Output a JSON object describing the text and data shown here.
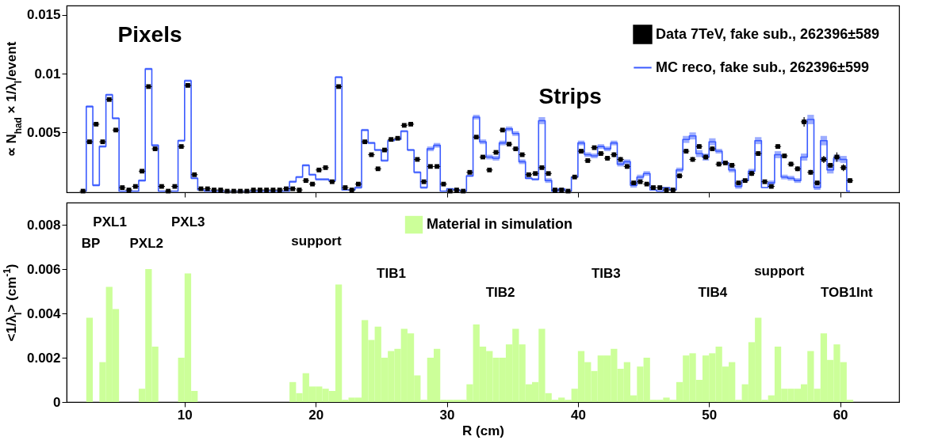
{
  "chart_data": [
    {
      "type": "step",
      "ylabel": "∝ N$_{had}$ × 1/λ$_{I}$/event",
      "xlim": [
        1,
        64.5
      ],
      "ylim": [
        -0.0001,
        0.0158
      ],
      "xticks": [
        10,
        20,
        30,
        40,
        50,
        60
      ],
      "yticks": [
        0.005,
        0.01,
        0.015
      ],
      "tick_labels": "y",
      "legend": "top right",
      "x": [
        2.25,
        2.75,
        3.25,
        3.75,
        4.25,
        4.75,
        5.25,
        5.75,
        6.25,
        6.75,
        7.25,
        7.75,
        8.25,
        8.75,
        9.25,
        9.75,
        10.25,
        10.75,
        11.25,
        11.75,
        12.25,
        12.75,
        13.25,
        13.75,
        14.25,
        14.75,
        15.25,
        15.75,
        16.25,
        16.75,
        17.25,
        17.75,
        18.25,
        18.75,
        19.25,
        19.75,
        20.25,
        20.75,
        21.25,
        21.75,
        22.25,
        22.75,
        23.25,
        23.75,
        24.25,
        24.75,
        25.25,
        25.75,
        26.25,
        26.75,
        27.25,
        27.75,
        28.25,
        28.75,
        29.25,
        29.75,
        30.25,
        30.75,
        31.25,
        31.75,
        32.25,
        32.75,
        33.25,
        33.75,
        34.25,
        34.75,
        35.25,
        35.75,
        36.25,
        36.75,
        37.25,
        37.75,
        38.25,
        38.75,
        39.25,
        39.75,
        40.25,
        40.75,
        41.25,
        41.75,
        42.25,
        42.75,
        43.25,
        43.75,
        44.25,
        44.75,
        45.25,
        45.75,
        46.25,
        46.75,
        47.25,
        47.75,
        48.25,
        48.75,
        49.25,
        49.75,
        50.25,
        50.75,
        51.25,
        51.75,
        52.25,
        52.75,
        53.25,
        53.75,
        54.25,
        54.75,
        55.25,
        55.75,
        56.25,
        56.75,
        57.25,
        57.75,
        58.25,
        58.75,
        59.25,
        59.75,
        60.25,
        60.75
      ],
      "series": [
        {
          "name": "Data 7TeV, fake sub., 262396±589",
          "type": "scatter",
          "marker": "square",
          "color": "#000000",
          "x": [
            2.25,
            2.75,
            3.25,
            3.75,
            4.25,
            4.75,
            5.25,
            5.75,
            6.25,
            6.75,
            7.25,
            7.75,
            8.25,
            8.75,
            9.25,
            9.75,
            10.25,
            10.75,
            11.25,
            11.75,
            12.25,
            12.75,
            13.25,
            13.75,
            14.25,
            14.75,
            15.25,
            15.75,
            16.25,
            16.75,
            17.25,
            17.75,
            18.25,
            18.75,
            19.25,
            19.75,
            20.25,
            20.75,
            21.25,
            21.75,
            22.25,
            22.75,
            23.25,
            23.75,
            24.25,
            24.75,
            25.25,
            25.75,
            26.25,
            26.75,
            27.25,
            27.75,
            28.25,
            28.75,
            29.25,
            29.75,
            30.25,
            30.75,
            31.25,
            31.75,
            32.25,
            32.75,
            33.25,
            33.75,
            34.25,
            34.75,
            35.25,
            35.75,
            36.25,
            36.75,
            37.25,
            37.75,
            38.25,
            38.75,
            39.25,
            39.75,
            40.25,
            40.75,
            41.25,
            41.75,
            42.25,
            42.75,
            43.25,
            43.75,
            44.25,
            44.75,
            45.25,
            45.75,
            46.25,
            46.75,
            47.25,
            47.75,
            48.25,
            48.75,
            49.25,
            49.75,
            50.25,
            50.75,
            51.25,
            51.75,
            52.25,
            52.75,
            53.25,
            53.75,
            54.25,
            54.75,
            55.25,
            55.75,
            56.25,
            56.75,
            57.25,
            57.75,
            58.25,
            58.75,
            59.25,
            59.75,
            60.25,
            60.75
          ],
          "values": [
            0,
            0.0042,
            0.0057,
            0.0042,
            0.0078,
            0.0052,
            0.0003,
            0.0001,
            0.0004,
            0.0017,
            0.0089,
            0.0036,
            0.0004,
            0,
            0.0004,
            0.0038,
            0.009,
            0.0014,
            0.0002,
            0.0002,
            0.0001,
            0.0001,
            0,
            0,
            0,
            0,
            0.0001,
            0.0001,
            0.0001,
            0.0001,
            0.0001,
            0.0002,
            0.0002,
            0.0001,
            0.0009,
            0.0006,
            0.0018,
            0.002,
            0.0008,
            0.0089,
            0.0003,
            0.0001,
            0.0006,
            0.0042,
            0.0031,
            0.0019,
            0.0035,
            0.0044,
            0.0045,
            0.0056,
            0.0057,
            0.0027,
            0.0008,
            0.0021,
            0.0021,
            0.0006,
            0,
            0.0001,
            0,
            0.0016,
            0.0046,
            0.0029,
            0.0018,
            0.0033,
            0.0052,
            0.004,
            0.0036,
            0.0031,
            0.0014,
            0.0015,
            0.002,
            0.0015,
            0.0001,
            0.0001,
            0,
            0.0012,
            0.0034,
            0.0026,
            0.0037,
            0.0032,
            0.0028,
            0.0031,
            0.0027,
            0.0021,
            0.0007,
            0.0008,
            0.0006,
            0.0003,
            0.0003,
            0.0001,
            0.0001,
            0.0013,
            0.0034,
            0.0027,
            0.0038,
            0.0029,
            0.0036,
            0.0023,
            0.0024,
            0.0022,
            0.0007,
            0.0009,
            0.0015,
            0.0032,
            0.0008,
            0.0004,
            0.0038,
            0.003,
            0.0023,
            0.0019,
            0.0059,
            0.0016,
            0.0007,
            0.0027,
            0.0022,
            0.0029,
            0.002,
            0.0009
          ],
          "errors": [
            null,
            null,
            null,
            null,
            null,
            null,
            null,
            null,
            null,
            null,
            null,
            null,
            null,
            null,
            null,
            null,
            null,
            null,
            null,
            null,
            null,
            null,
            null,
            null,
            null,
            null,
            null,
            null,
            null,
            null,
            null,
            null,
            null,
            null,
            null,
            null,
            null,
            null,
            null,
            null,
            null,
            null,
            null,
            null,
            null,
            null,
            null,
            null,
            null,
            null,
            null,
            null,
            null,
            null,
            null,
            null,
            null,
            null,
            null,
            null,
            null,
            null,
            null,
            null,
            null,
            null,
            null,
            null,
            null,
            null,
            null,
            null,
            null,
            null,
            null,
            null,
            null,
            null,
            null,
            null,
            0.0002,
            0.0002,
            0.0002,
            0.0002,
            null,
            null,
            null,
            null,
            null,
            null,
            null,
            0.0002,
            0.0002,
            0.0002,
            0.0002,
            0.0002,
            0.0002,
            0.0002,
            null,
            0.0002,
            null,
            null,
            0.0002,
            0.0002,
            null,
            null,
            0.0002,
            0.0002,
            0.0002,
            0.0002,
            0.0004,
            0.0002,
            null,
            0.0003,
            0.0002,
            0.0004,
            0.0003,
            0.0002
          ],
          "xerrors": [
            0.25,
            0.25,
            0.25,
            0.25,
            0.25,
            0.25,
            0.25,
            0.25,
            0.25,
            0.25,
            0.25,
            0.25,
            0.25,
            0.25,
            0.25,
            0.25,
            0.25,
            0.25,
            0.25,
            0.25,
            0.25,
            0.25,
            0.25,
            0.25,
            0.25,
            0.25,
            0.25,
            0.25,
            0.25,
            0.25,
            0.25,
            0.25,
            0.25,
            0.25,
            0.25,
            0.25,
            0.25,
            0.25,
            0.25,
            0.25,
            0.25,
            0.25,
            0.25,
            0.25,
            0.25,
            0.25,
            0.25,
            0.25,
            0.25,
            0.25,
            0.25,
            0.25,
            0.25,
            0.25,
            0.25,
            0.25,
            0.25,
            0.25,
            0.25,
            0.25,
            0.25,
            0.25,
            0.25,
            0.25,
            0.25,
            0.25,
            0.25,
            0.25,
            0.25,
            0.25,
            0.25,
            0.25,
            0.25,
            0.25,
            0.25,
            0.25,
            0.25,
            0.25,
            0.25,
            0.25,
            0.25,
            0.25,
            0.25,
            0.25,
            0.25,
            0.25,
            0.25,
            0.25,
            0.25,
            0.25,
            0.25,
            0.25,
            0.25,
            0.25,
            0.25,
            0.25,
            0.25,
            0.25,
            0.25,
            0.25,
            0.25,
            0.25,
            0.25,
            0.25,
            0.25,
            0.25,
            0.25,
            0.25,
            0.25,
            0.25,
            0.25,
            0.25,
            0.25,
            0.25,
            0.25,
            0.25,
            0.25,
            0.25
          ]
        },
        {
          "name": "MC reco, fake sub., 262396±599",
          "color": "#3b5bff",
          "values": [
            0,
            0.0072,
            0.0005,
            0.0038,
            0.0082,
            0.0062,
            0,
            0,
            0,
            0.0009,
            0.0104,
            0.0039,
            0,
            0,
            0,
            0.0043,
            0.0094,
            0.0011,
            0.0001,
            0,
            0,
            0,
            0,
            0,
            0,
            0,
            0,
            0,
            0,
            0,
            0,
            0,
            0.0008,
            0.0012,
            0.0022,
            0.0014,
            0.001,
            0.001,
            0.0009,
            0.0097,
            0.0001,
            0.0001,
            0.0003,
            0.0052,
            0.0041,
            0.0035,
            0.0026,
            0.0043,
            0.0044,
            0.0051,
            0.0035,
            0.0016,
            0.0003,
            0.0036,
            0.0039,
            0,
            0.0002,
            0.0001,
            0,
            0.0013,
            0.0063,
            0.0042,
            0.0029,
            0.0028,
            0.0041,
            0.0053,
            0.0049,
            0.0025,
            0.0011,
            0.001,
            0.006,
            0.0009,
            0,
            0.0002,
            0,
            0.0012,
            0.0041,
            0.0031,
            0.003,
            0.0038,
            0.0036,
            0.0041,
            0.0023,
            0.0025,
            0.0005,
            0.0012,
            0.0015,
            0.0001,
            0,
            0.0003,
            0.0001,
            0.0018,
            0.0044,
            0.0047,
            0.0032,
            0.0029,
            0.0042,
            0.0034,
            0.0024,
            0.0018,
            0.0004,
            0.0009,
            0.0017,
            0.0043,
            0.0003,
            0.0007,
            0.0031,
            0.0012,
            0.0011,
            0.0009,
            0.0029,
            0.0061,
            0.0003,
            0.0043,
            0.0018,
            0.0028,
            0.0027,
            0
          ],
          "errors": [
            null,
            0.0001,
            0.0001,
            0.0001,
            0.0001,
            0.0001,
            null,
            null,
            null,
            0.0001,
            0.0001,
            0.0001,
            null,
            null,
            null,
            0.0001,
            0.0001,
            0.0001,
            null,
            null,
            null,
            null,
            null,
            null,
            null,
            null,
            null,
            null,
            null,
            null,
            null,
            null,
            0.0001,
            0.0001,
            0.0001,
            0.0001,
            0.0001,
            0.0001,
            null,
            0.0001,
            null,
            null,
            0.0001,
            0.0001,
            0.0001,
            0.0001,
            0.0001,
            null,
            null,
            0.0001,
            0.0001,
            0.0001,
            0.0001,
            0.0002,
            0.0002,
            null,
            null,
            null,
            null,
            0.0001,
            0.0002,
            0.0002,
            0.0002,
            0.0002,
            0.0002,
            0.0002,
            0.0002,
            0.0002,
            0.0001,
            0.0001,
            0.0003,
            0.0002,
            null,
            null,
            null,
            null,
            0.0002,
            0.0002,
            0.0002,
            0.0002,
            0.0002,
            0.0002,
            0.0002,
            0.0002,
            0.0002,
            0.0002,
            0.0002,
            null,
            null,
            null,
            null,
            0.0002,
            0.0003,
            0.0003,
            0.0003,
            0.0003,
            0.0003,
            0.0002,
            null,
            0.0002,
            0.0002,
            null,
            0.0002,
            0.0003,
            null,
            0.0002,
            0.0003,
            0.0002,
            0.0002,
            0.0002,
            0.0003,
            0.0004,
            0.0002,
            0.0004,
            0.0003,
            0.0003,
            0.0003,
            null
          ]
        }
      ],
      "annotations": [
        "Pixels",
        "Strips"
      ]
    },
    {
      "type": "histogram",
      "xlabel": "R (cm)",
      "ylabel": "<1/λ$_{I}$> (cm$^{-1}$)",
      "xlim": [
        1,
        64.5
      ],
      "ylim": [
        0,
        0.009
      ],
      "xticks": [
        10,
        20,
        30,
        40,
        50,
        60
      ],
      "yticks": [
        0,
        0.002,
        0.004,
        0.006,
        0.008
      ],
      "legend": "top",
      "bins": [
        2.5,
        3,
        3.5,
        4,
        4.5,
        5,
        5.5,
        6,
        6.5,
        7,
        7.5,
        8,
        8.5,
        9,
        9.5,
        10,
        10.5,
        11,
        11.5,
        12,
        12.5,
        13,
        13.5,
        14,
        14.5,
        15,
        15.5,
        16,
        16.5,
        17,
        17.5,
        18,
        18.5,
        19,
        19.5,
        20,
        20.5,
        21,
        21.5,
        22,
        22.5,
        23,
        23.5,
        24,
        24.5,
        25,
        25.5,
        26,
        26.5,
        27,
        27.5,
        28,
        28.5,
        29,
        29.5,
        30,
        30.5,
        31,
        31.5,
        32,
        32.5,
        33,
        33.5,
        34,
        34.5,
        35,
        35.5,
        36,
        36.5,
        37,
        37.5,
        38,
        38.5,
        39,
        39.5,
        40,
        40.5,
        41,
        41.5,
        42,
        42.5,
        43,
        43.5,
        44,
        44.5,
        45,
        45.5,
        46,
        46.5,
        47,
        47.5,
        48,
        48.5,
        49,
        49.5,
        50,
        50.5,
        51,
        51.5,
        52,
        52.5,
        53,
        53.5,
        54,
        54.5,
        55,
        55.5,
        56,
        56.5,
        57,
        57.5,
        58,
        58.5,
        59,
        59.5,
        60,
        60.5,
        61
      ],
      "series": [
        {
          "name": "Material in simulation",
          "color": "#ccff99",
          "values": [
            0.0038,
            0,
            0.0018,
            0.0052,
            0.0042,
            0,
            0,
            0,
            0.0006,
            0.006,
            0.0025,
            0,
            0,
            0,
            0.002,
            0.0058,
            0.0005,
            0,
            0,
            0,
            0,
            0,
            0,
            0,
            0,
            0,
            0,
            0,
            0,
            0,
            0,
            0.0009,
            0.0004,
            0.0013,
            0.0007,
            0.0007,
            0.0006,
            0.0005,
            0.0053,
            0.0001,
            0.0002,
            0.0002,
            0.0037,
            0.0028,
            0.0034,
            0.002,
            0.0023,
            0.0024,
            0.0033,
            0.0031,
            0.0012,
            0.0001,
            0.002,
            0.0024,
            0.0001,
            0.0001,
            0.0001,
            0.0001,
            0.0008,
            0.0035,
            0.0025,
            0.0023,
            0.002,
            0.002,
            0.0026,
            0.0033,
            0.0026,
            0.0008,
            0.0009,
            0.0033,
            0.0004,
            0.0001,
            0.0002,
            0.0001,
            0.0006,
            0.0023,
            0.0018,
            0.0014,
            0.0021,
            0.0021,
            0.0024,
            0.0015,
            0.0018,
            0.0003,
            0.0016,
            0.002,
            0.0001,
            0.0001,
            0.0002,
            0.0001,
            0.0009,
            0.0021,
            0.0022,
            0.001,
            0.0021,
            0.0022,
            0.0025,
            0.0016,
            0.0018,
            0.0001,
            0.0008,
            0.0027,
            0.0038,
            0.0001,
            0.0003,
            0.0025,
            0.0006,
            0.0006,
            0.0006,
            0.0008,
            0.0023,
            0.0006,
            0.0031,
            0.0019,
            0.0026,
            0.0018,
            0.0001
          ]
        }
      ],
      "annotations": [
        "PXL1",
        "BP",
        "PXL2",
        "PXL3",
        "support",
        "TIB1",
        "TIB2",
        "TIB3",
        "TIB4",
        "support",
        "TOB1Int"
      ]
    }
  ]
}
